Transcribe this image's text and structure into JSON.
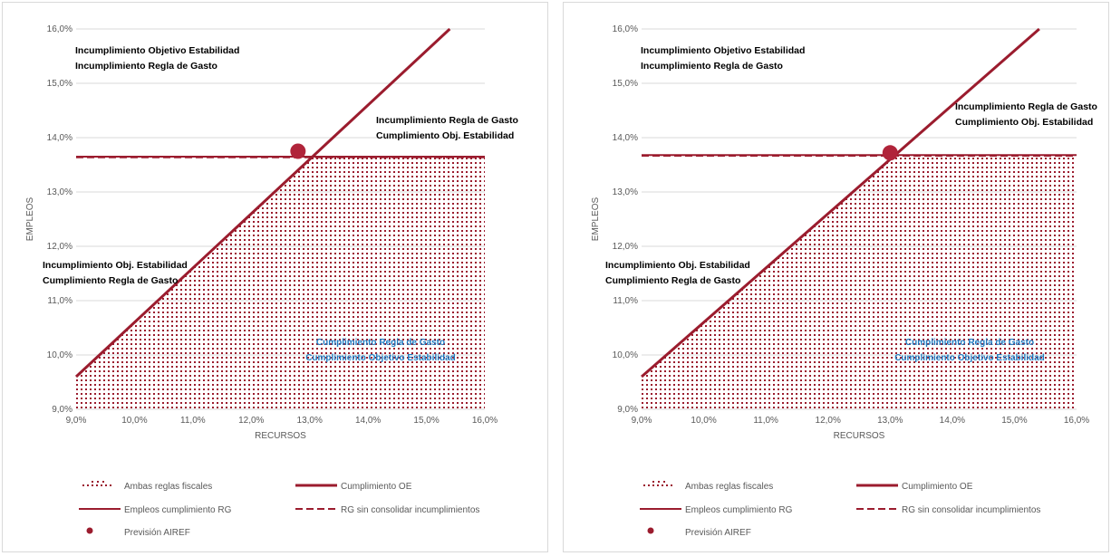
{
  "colors": {
    "accent": "#9b1c2e",
    "grid": "#d9d9d9",
    "tick_text": "#595959",
    "blue_label": "#1f7bc1"
  },
  "legend": {
    "ambas": "Ambas reglas fiscales",
    "cumplimiento_oe": "Cumplimiento OE",
    "empleos_rg": "Empleos cumplimiento RG",
    "rg_sin": "RG sin consolidar incumplimientos",
    "prevision": "Previsión AIREF"
  },
  "chart_data": [
    {
      "type": "line",
      "xlabel": "RECURSOS",
      "ylabel": "EMPLEOS",
      "xlim": [
        9.0,
        16.0
      ],
      "ylim": [
        9.0,
        16.0
      ],
      "x_ticks": [
        "9,0%",
        "10,0%",
        "11,0%",
        "12,0%",
        "13,0%",
        "14,0%",
        "15,0%",
        "16,0%"
      ],
      "y_ticks": [
        "9,0%",
        "10,0%",
        "11,0%",
        "12,0%",
        "13,0%",
        "14,0%",
        "15,0%",
        "16,0%"
      ],
      "grid": "horizontal",
      "series": [
        {
          "name": "Cumplimiento OE",
          "x": [
            9.0,
            15.4
          ],
          "y": [
            9.6,
            16.0
          ]
        },
        {
          "name": "Empleos cumplimiento RG",
          "x": [
            9.0,
            16.0
          ],
          "y": [
            13.65,
            13.65
          ]
        },
        {
          "name": "RG sin consolidar incumplimientos",
          "x": [
            9.0,
            16.0
          ],
          "y": [
            13.65,
            13.65
          ]
        },
        {
          "name": "Previsión AIREF",
          "x": [
            12.8
          ],
          "y": [
            13.75
          ]
        }
      ],
      "shaded_region": {
        "name": "Ambas reglas fiscales",
        "x_from": 9.0,
        "x_to": 16.0,
        "y_cap": 13.65
      },
      "annotations": [
        {
          "lines": [
            "Incumplimiento Objetivo Estabilidad",
            "Incumplimiento Regla de Gasto"
          ]
        },
        {
          "lines": [
            "Incumplimiento Regla de Gasto",
            "Cumplimiento Obj. Estabilidad"
          ]
        },
        {
          "lines": [
            "Incumplimiento Obj. Estabilidad",
            "Cumplimiento Regla de Gasto"
          ]
        },
        {
          "lines": [
            "Cumplimiento Regla de Gasto",
            "Cumplimiento Objetivo Estabilidad"
          ]
        }
      ]
    },
    {
      "type": "line",
      "xlabel": "RECURSOS",
      "ylabel": "EMPLEOS",
      "xlim": [
        9.0,
        16.0
      ],
      "ylim": [
        9.0,
        16.0
      ],
      "x_ticks": [
        "9,0%",
        "10,0%",
        "11,0%",
        "12,0%",
        "13,0%",
        "14,0%",
        "15,0%",
        "16,0%"
      ],
      "y_ticks": [
        "9,0%",
        "10,0%",
        "11,0%",
        "12,0%",
        "13,0%",
        "14,0%",
        "15,0%",
        "16,0%"
      ],
      "grid": "horizontal",
      "series": [
        {
          "name": "Cumplimiento OE",
          "x": [
            9.0,
            15.4
          ],
          "y": [
            9.6,
            16.0
          ]
        },
        {
          "name": "Empleos cumplimiento RG",
          "x": [
            9.0,
            16.0
          ],
          "y": [
            13.68,
            13.68
          ]
        },
        {
          "name": "RG sin consolidar incumplimientos",
          "x": [
            9.0,
            16.0
          ],
          "y": [
            13.68,
            13.68
          ]
        },
        {
          "name": "Previsión AIREF",
          "x": [
            13.0
          ],
          "y": [
            13.72
          ]
        }
      ],
      "shaded_region": {
        "name": "Ambas reglas fiscales",
        "x_from": 9.0,
        "x_to": 16.0,
        "y_cap": 13.68
      },
      "annotations": [
        {
          "lines": [
            "Incumplimiento Objetivo Estabilidad",
            "Incumplimiento Regla de Gasto"
          ]
        },
        {
          "lines": [
            "Incumplimiento Regla de Gasto",
            "Cumplimiento Obj. Estabilidad"
          ]
        },
        {
          "lines": [
            "Incumplimiento Obj. Estabilidad",
            "Cumplimiento Regla de Gasto"
          ]
        },
        {
          "lines": [
            "Cumplimiento Regla de Gasto",
            "Cumplimiento Objetivo Estabilidad"
          ]
        }
      ]
    }
  ]
}
